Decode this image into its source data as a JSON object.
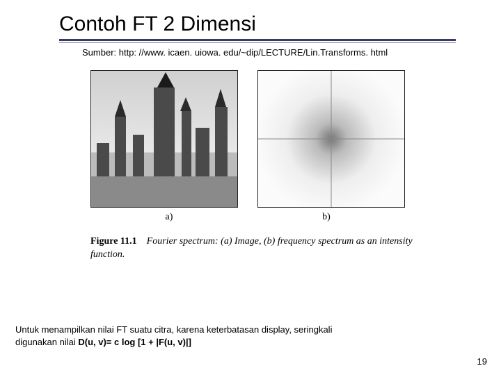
{
  "title": "Contoh FT 2 Dimensi",
  "source": "Sumber: http: //www. icaen. uiowa. edu/~dip/LECTURE/Lin.Transforms. html",
  "figure": {
    "label_a": "a)",
    "label_b": "b)",
    "caption_lead": "Figure 11.1",
    "caption_rest": "Fourier spectrum: (a) Image, (b) frequency spectrum as an intensity function."
  },
  "bottom_line1": "Untuk menampilkan nilai FT suatu citra, karena keterbatasan display, seringkali",
  "bottom_line2_pre": "digunakan nilai ",
  "bottom_line2_bold": "D(u, v)= c log [1 + |F(u, v)|]",
  "page_number": "19",
  "colors": {
    "underline_thick": "#3a3a6a",
    "underline_thin": "#8a8ab0",
    "background": "#ffffff",
    "text": "#000000"
  }
}
